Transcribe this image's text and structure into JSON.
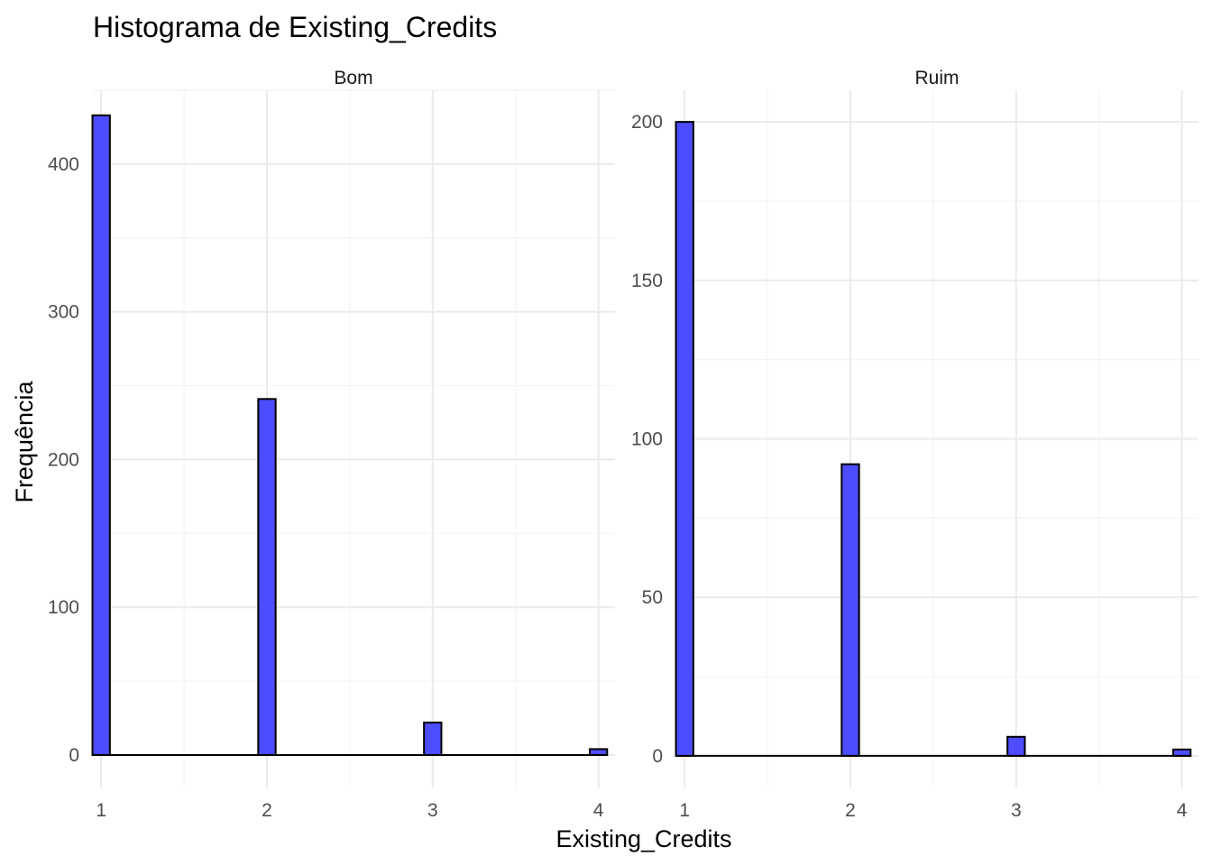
{
  "title": "Histograma de Existing_Credits",
  "xlabel": "Existing_Credits",
  "ylabel": "Frequência",
  "chart_data": {
    "type": "bar",
    "title": "Histograma de Existing_Credits",
    "xlabel": "Existing_Credits",
    "ylabel": "Frequência",
    "fill_color": "#4d4dff",
    "outline_color": "#000000",
    "grid": true,
    "panels": [
      {
        "name": "Bom",
        "x": [
          1,
          2,
          3,
          4
        ],
        "values": [
          433,
          241,
          22,
          4
        ],
        "xlim": [
          0.95,
          4.1
        ],
        "ylim": [
          -22,
          450
        ],
        "xticks": [
          1,
          2,
          3,
          4
        ],
        "yticks": [
          0,
          100,
          200,
          300,
          400
        ]
      },
      {
        "name": "Ruim",
        "x": [
          1,
          2,
          3,
          4
        ],
        "values": [
          200,
          92,
          6,
          2
        ],
        "xlim": [
          0.95,
          4.1
        ],
        "ylim": [
          -10,
          210
        ],
        "xticks": [
          1,
          2,
          3,
          4
        ],
        "yticks": [
          0,
          50,
          100,
          150,
          200
        ]
      }
    ]
  }
}
